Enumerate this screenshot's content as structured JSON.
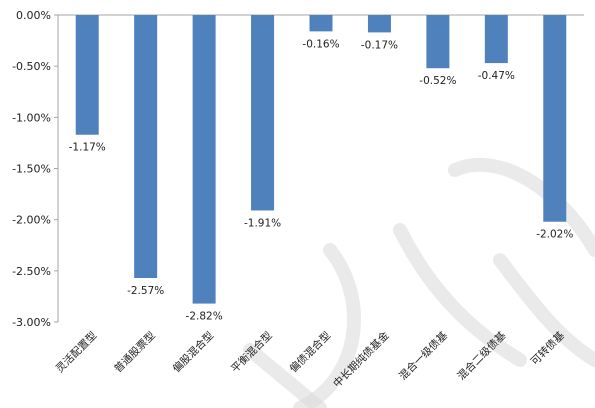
{
  "chart_data": {
    "type": "bar",
    "title": "",
    "xlabel": "",
    "ylabel": "",
    "categories": [
      "灵活配置型",
      "普通股票型",
      "偏股混合型",
      "平衡混合型",
      "偏债混合型",
      "中长期纯债基金",
      "混合一级债基",
      "混合二级债基",
      "可转债基"
    ],
    "values": [
      -1.17,
      -2.57,
      -2.82,
      -1.91,
      -0.16,
      -0.17,
      -0.52,
      -0.47,
      -2.02
    ],
    "data_labels": [
      "-1.17%",
      "-2.57%",
      "-2.82%",
      "-1.91%",
      "-0.16%",
      "-0.17%",
      "-0.52%",
      "-0.47%",
      "-2.02%"
    ],
    "ylim": [
      -3.0,
      0.0
    ],
    "y_ticks": [
      0.0,
      -0.5,
      -1.0,
      -1.5,
      -2.0,
      -2.5,
      -3.0
    ],
    "y_tick_labels": [
      "0.00%",
      "-0.50%",
      "-1.00%",
      "-1.50%",
      "-2.00%",
      "-2.50%",
      "-3.00%"
    ],
    "grid": false,
    "legend": "none",
    "bar_color": "#4f81bd",
    "axis_color": "#a6a6a6"
  }
}
